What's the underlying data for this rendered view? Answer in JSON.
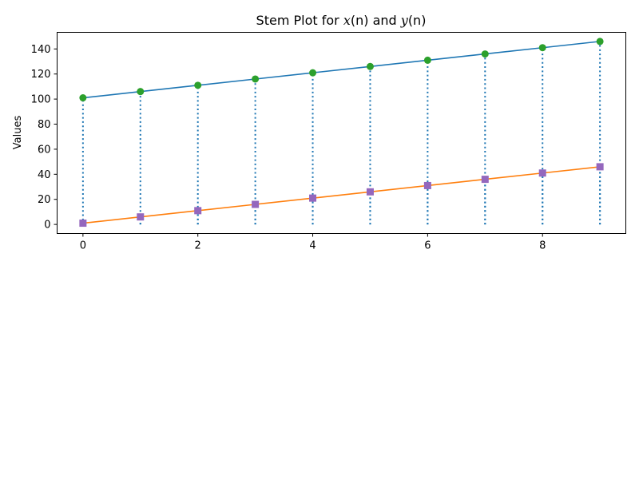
{
  "chart_data": {
    "type": "line",
    "title": {
      "prefix": "Stem Plot for ",
      "var1": "x",
      "arg1": "(n)",
      "mid": " and ",
      "var2": "y",
      "arg2": "(n)"
    },
    "xlabel": "",
    "ylabel": "Values",
    "x": [
      0,
      1,
      2,
      3,
      4,
      5,
      6,
      7,
      8,
      9
    ],
    "xlim": [
      -0.45,
      9.45
    ],
    "ylim": [
      -7.25,
      153.25
    ],
    "xticks": [
      0,
      2,
      4,
      6,
      8
    ],
    "yticks": [
      0,
      20,
      40,
      60,
      80,
      100,
      120,
      140
    ],
    "grid": false,
    "series": [
      {
        "values": [
          101,
          106,
          111,
          116,
          121,
          126,
          131,
          136,
          141,
          146
        ],
        "line_color": "#1f77b4",
        "marker_color": "#2ca02c",
        "marker": "circle"
      },
      {
        "values": [
          1,
          6,
          11,
          16,
          21,
          26,
          31,
          36,
          41,
          46
        ],
        "line_color": "#ff7f0e",
        "marker_color": "#9467bd",
        "marker": "square"
      }
    ],
    "stems": {
      "color": "#1f77b4",
      "style": "dotted",
      "baseline": 0
    }
  }
}
